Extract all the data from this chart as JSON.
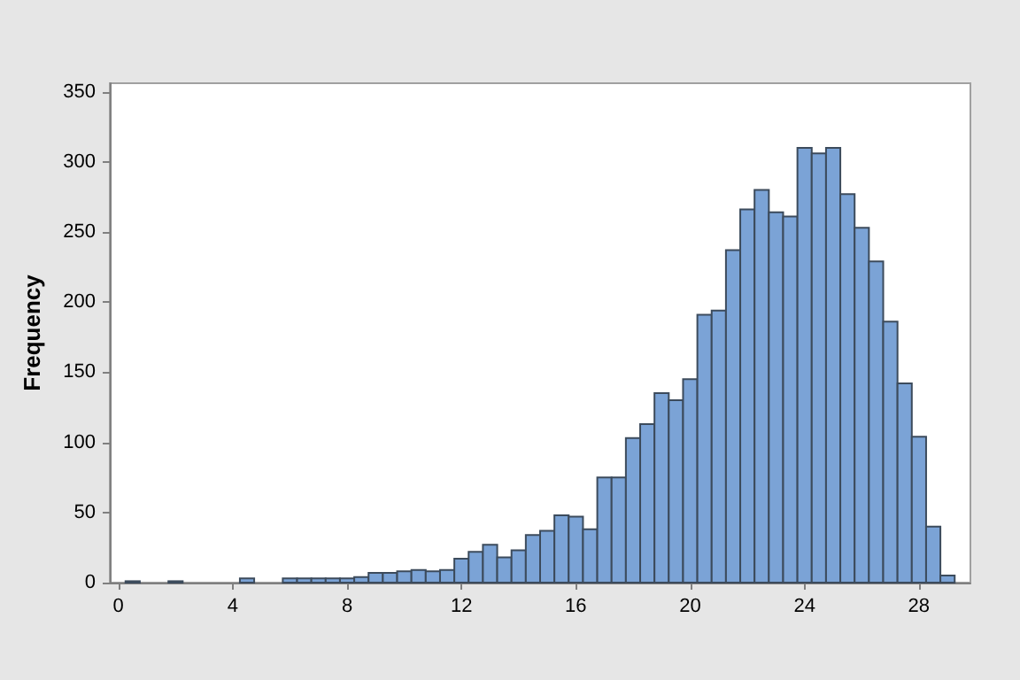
{
  "chart_data": {
    "type": "histogram",
    "ylabel": "Frequency",
    "bins": [
      0.25,
      0.75,
      1.25,
      1.75,
      2.25,
      2.75,
      3.25,
      3.75,
      4.25,
      4.75,
      5.25,
      5.75,
      6.25,
      6.75,
      7.25,
      7.75,
      8.25,
      8.75,
      9.25,
      9.75,
      10.25,
      10.75,
      11.25,
      11.75,
      12.25,
      12.75,
      13.25,
      13.75,
      14.25,
      14.75,
      15.25,
      15.75,
      16.25,
      16.75,
      17.25,
      17.75,
      18.25,
      18.75,
      19.25,
      19.75,
      20.25,
      20.75,
      21.25,
      21.75,
      22.25,
      22.75,
      23.25,
      23.75,
      24.25,
      24.75,
      25.25,
      25.75,
      26.25,
      26.75,
      27.25,
      27.75,
      28.25,
      28.75,
      29.25
    ],
    "values": [
      1,
      0,
      0,
      1,
      0,
      0,
      0,
      0,
      3,
      0,
      0,
      3,
      3,
      3,
      3,
      3,
      4,
      7,
      7,
      8,
      9,
      8,
      9,
      17,
      22,
      27,
      18,
      23,
      34,
      37,
      48,
      47,
      38,
      75,
      75,
      103,
      113,
      135,
      130,
      145,
      191,
      194,
      237,
      266,
      280,
      264,
      261,
      310,
      306,
      310,
      277,
      253,
      229,
      186,
      142,
      104,
      40,
      5
    ],
    "color": "#7ba3d6",
    "xlim": [
      -0.3,
      29.8
    ],
    "ylim": [
      0,
      356
    ],
    "xticks": [
      0,
      4,
      8,
      12,
      16,
      20,
      24,
      28
    ],
    "yticks": [
      0,
      50,
      100,
      150,
      200,
      250,
      300,
      350
    ],
    "grid": false
  }
}
